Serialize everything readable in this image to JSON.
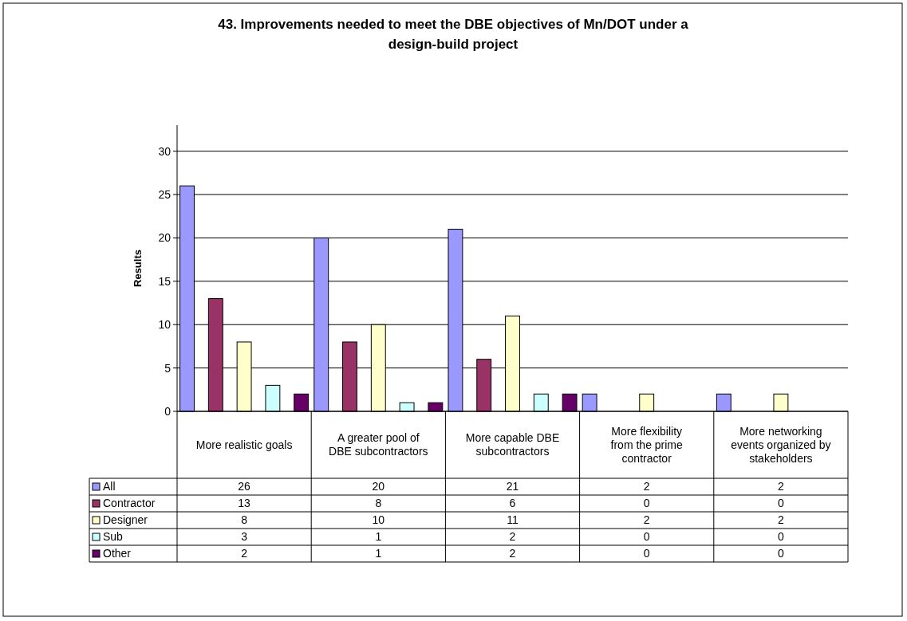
{
  "chart_data": {
    "type": "bar",
    "title": "43. Improvements needed to meet the DBE objectives of Mn/DOT under a design-build project",
    "ylabel": "Results",
    "categories": [
      "More realistic goals",
      "A greater pool of DBE subcontractors",
      "More capable DBE subcontractors",
      "More flexibility from the prime contractor",
      "More networking events organized by stakeholders"
    ],
    "series": [
      {
        "name": "All",
        "color": "#9999ff",
        "values": [
          26,
          20,
          21,
          2,
          2
        ]
      },
      {
        "name": "Contractor",
        "color": "#993366",
        "values": [
          13,
          8,
          6,
          0,
          0
        ]
      },
      {
        "name": "Designer",
        "color": "#ffffcc",
        "values": [
          8,
          10,
          11,
          2,
          2
        ]
      },
      {
        "name": "Sub",
        "color": "#ccffff",
        "values": [
          3,
          1,
          2,
          0,
          0
        ]
      },
      {
        "name": "Other",
        "color": "#660066",
        "values": [
          2,
          1,
          2,
          0,
          0
        ]
      }
    ],
    "ylim": [
      0,
      33
    ],
    "yticks": [
      0,
      5,
      10,
      15,
      20,
      25,
      30
    ],
    "grid": "y",
    "data_labels": true,
    "legend": "bottom"
  }
}
